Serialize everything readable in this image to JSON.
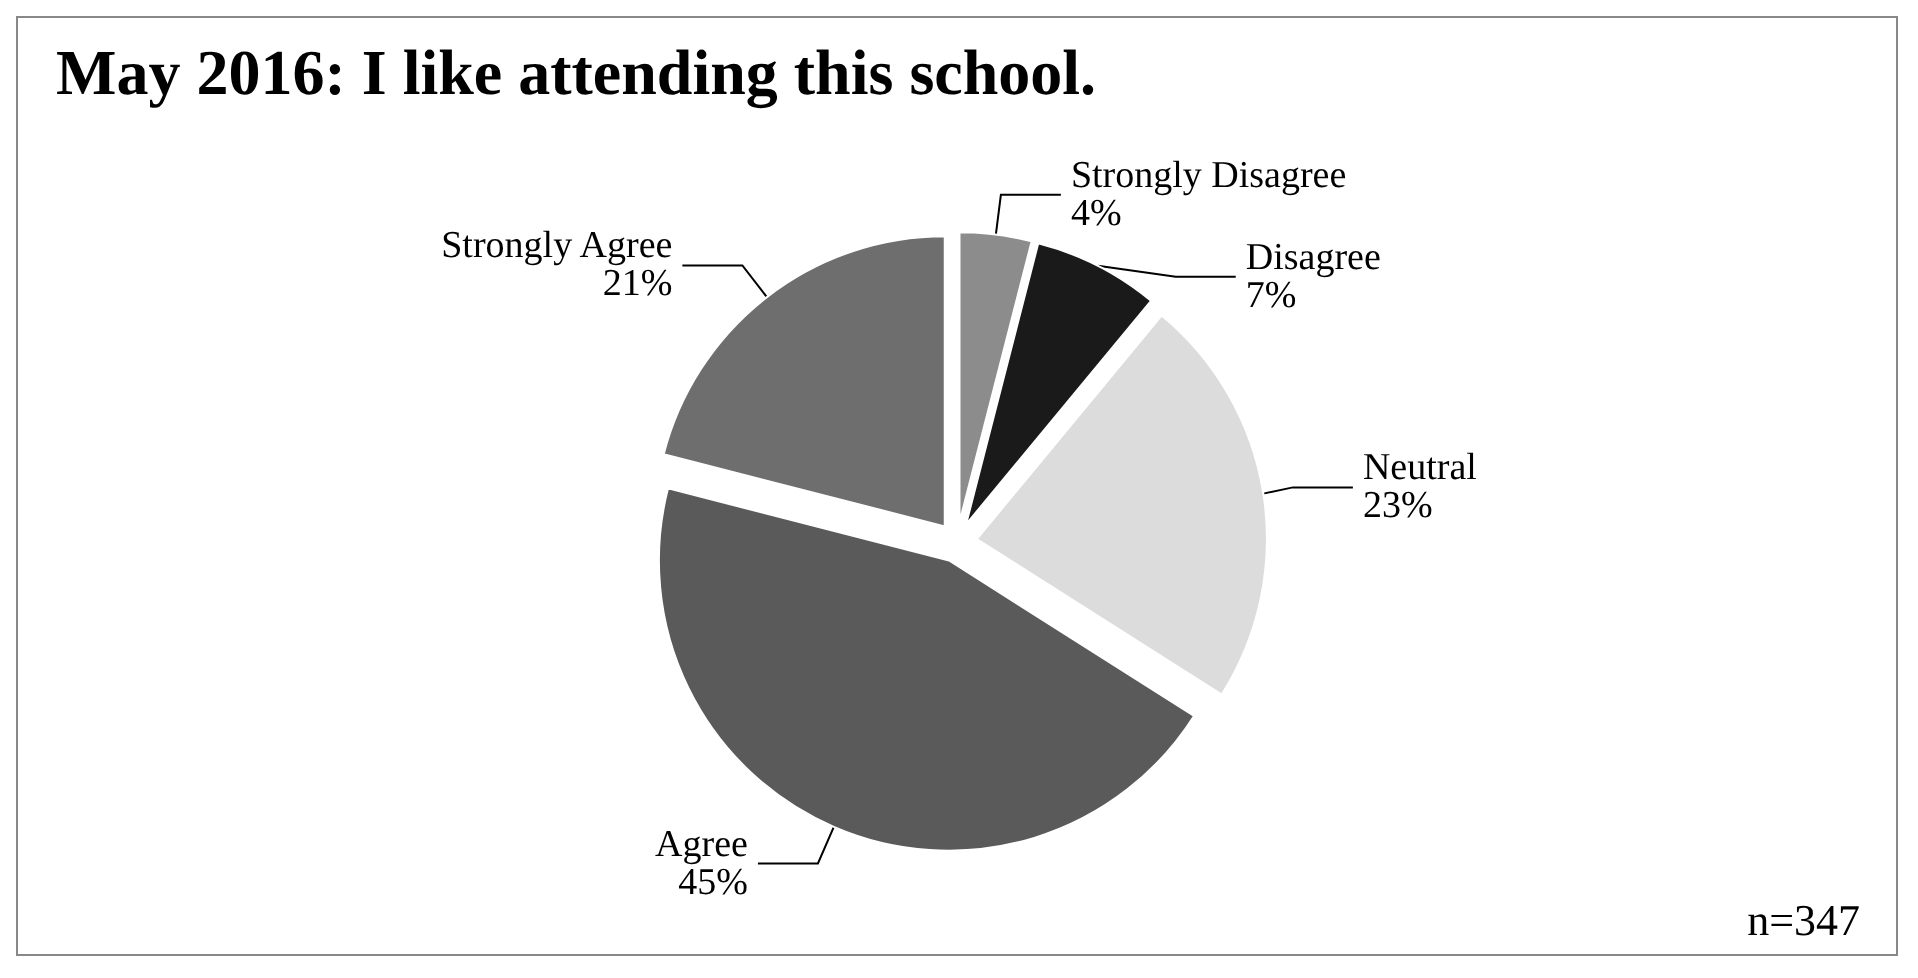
{
  "chart_data": {
    "type": "pie",
    "title": "May 2016: I like attending this school.",
    "categories": [
      "Strongly Disagree",
      "Disagree",
      "Neutral",
      "Agree",
      "Strongly Agree"
    ],
    "values": [
      4,
      7,
      23,
      45,
      21
    ],
    "value_labels": [
      "4%",
      "7%",
      "23%",
      "45%",
      "21%"
    ],
    "colors": [
      "#8c8c8c",
      "#1a1a1a",
      "#dcdcdc",
      "#5a5a5a",
      "#6e6e6e"
    ],
    "annotations": [
      "n=347"
    ],
    "legend": false
  }
}
